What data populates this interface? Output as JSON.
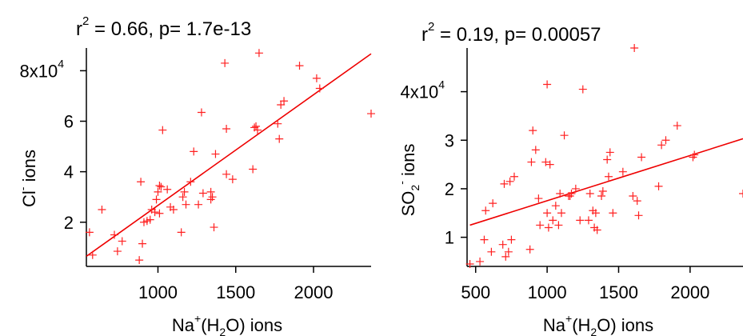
{
  "chart_data": [
    {
      "type": "scatter",
      "title": "r = 0.66, p= 1.7e-13",
      "title_parts": {
        "prefix": "r",
        "sup": "2",
        "rest": " = 0.66, p= 1.7e-13"
      },
      "xlabel": "Na+(H2O) ions",
      "xlabel_parts": {
        "a": "Na",
        "sup": "+",
        "b": "(H",
        "sub": "2",
        "c": "O) ions"
      },
      "ylabel": "Cl- ions",
      "ylabel_parts": {
        "a": "Cl",
        "sup": "-",
        "b": " ions"
      },
      "xlim": [
        540,
        2370
      ],
      "ylim": [
        2500,
        89000
      ],
      "xticks": [
        1000,
        1500,
        2000
      ],
      "xtick_labels": [
        "1000",
        "1500",
        "2000"
      ],
      "yticks": [
        20000,
        40000,
        60000,
        80000
      ],
      "ytick_labels": [
        "2",
        "4",
        "6",
        "8x10"
      ],
      "ytick_top_sup": "4",
      "marker_color": "#ff2020",
      "line_color": "#ee0000",
      "fit": {
        "x": [
          540,
          2370
        ],
        "y": [
          6500,
          86700
        ]
      },
      "x": [
        560,
        580,
        640,
        720,
        740,
        770,
        880,
        890,
        900,
        910,
        930,
        950,
        960,
        980,
        990,
        1000,
        1010,
        1010,
        1020,
        1030,
        1060,
        1080,
        1100,
        1150,
        1160,
        1170,
        1180,
        1210,
        1230,
        1260,
        1280,
        1290,
        1340,
        1340,
        1350,
        1360,
        1370,
        1430,
        1440,
        1440,
        1480,
        1610,
        1620,
        1630,
        1640,
        1650,
        1770,
        1780,
        1790,
        1810,
        1910,
        2020,
        2040,
        2370
      ],
      "y": [
        16000,
        7000,
        25000,
        15000,
        8500,
        12500,
        5000,
        36000,
        11500,
        20000,
        20500,
        21000,
        25000,
        24000,
        29000,
        32000,
        23500,
        34500,
        34000,
        56500,
        33000,
        26000,
        25000,
        16000,
        30000,
        32000,
        27000,
        36000,
        48000,
        27000,
        63500,
        31500,
        32000,
        29000,
        30000,
        18000,
        47000,
        83000,
        39000,
        57000,
        37000,
        41000,
        57500,
        58000,
        56500,
        87000,
        59000,
        53000,
        66500,
        68000,
        82000,
        77000,
        73000,
        63000
      ]
    },
    {
      "type": "scatter",
      "title": "r = 0.19, p= 0.00057",
      "title_parts": {
        "prefix": "r",
        "sup": "2",
        "rest": " = 0.19, p= 0.00057"
      },
      "xlabel": "Na+(H2O) ions",
      "xlabel_parts": {
        "a": "Na",
        "sup": "+",
        "b": "(H",
        "sub": "2",
        "c": "O) ions"
      },
      "ylabel": "SO2- ions",
      "ylabel_parts": {
        "a": "SO",
        "sub": "2",
        "sup": "-",
        "b": " ions"
      },
      "xlim": [
        440,
        2370
      ],
      "ylim": [
        4000,
        49000
      ],
      "xticks": [
        500,
        1000,
        1500,
        2000
      ],
      "xtick_labels": [
        "500",
        "1000",
        "1500",
        "2000"
      ],
      "yticks": [
        10000,
        20000,
        30000,
        40000
      ],
      "ytick_labels": [
        "1",
        "2",
        "3",
        "4x10"
      ],
      "ytick_top_sup": "4",
      "marker_color": "#ff2020",
      "line_color": "#ee0000",
      "fit": {
        "x": [
          460,
          2370
        ],
        "y": [
          12500,
          30300
        ]
      },
      "x": [
        460,
        530,
        560,
        570,
        610,
        620,
        690,
        700,
        710,
        730,
        740,
        750,
        770,
        880,
        890,
        900,
        920,
        940,
        950,
        990,
        1000,
        1000,
        1010,
        1020,
        1040,
        1060,
        1080,
        1090,
        1100,
        1120,
        1150,
        1160,
        1170,
        1200,
        1230,
        1250,
        1290,
        1300,
        1320,
        1330,
        1340,
        1350,
        1380,
        1390,
        1420,
        1430,
        1440,
        1460,
        1530,
        1600,
        1610,
        1630,
        1640,
        1660,
        1780,
        1800,
        1830,
        1910,
        2020,
        2030,
        2370
      ],
      "y": [
        4500,
        5000,
        9500,
        15500,
        7000,
        17000,
        8500,
        21000,
        6000,
        7000,
        21500,
        9500,
        22500,
        7500,
        25500,
        32000,
        28000,
        18000,
        12500,
        25500,
        15000,
        41500,
        12000,
        25000,
        13500,
        16500,
        12500,
        19000,
        15000,
        31000,
        18500,
        18500,
        19000,
        20000,
        13500,
        40500,
        13500,
        19000,
        15500,
        12000,
        15000,
        11500,
        18500,
        19500,
        26000,
        22500,
        27500,
        15000,
        23500,
        18500,
        49000,
        17500,
        14500,
        26500,
        20500,
        29000,
        30000,
        33000,
        26500,
        27000,
        19000
      ]
    }
  ]
}
